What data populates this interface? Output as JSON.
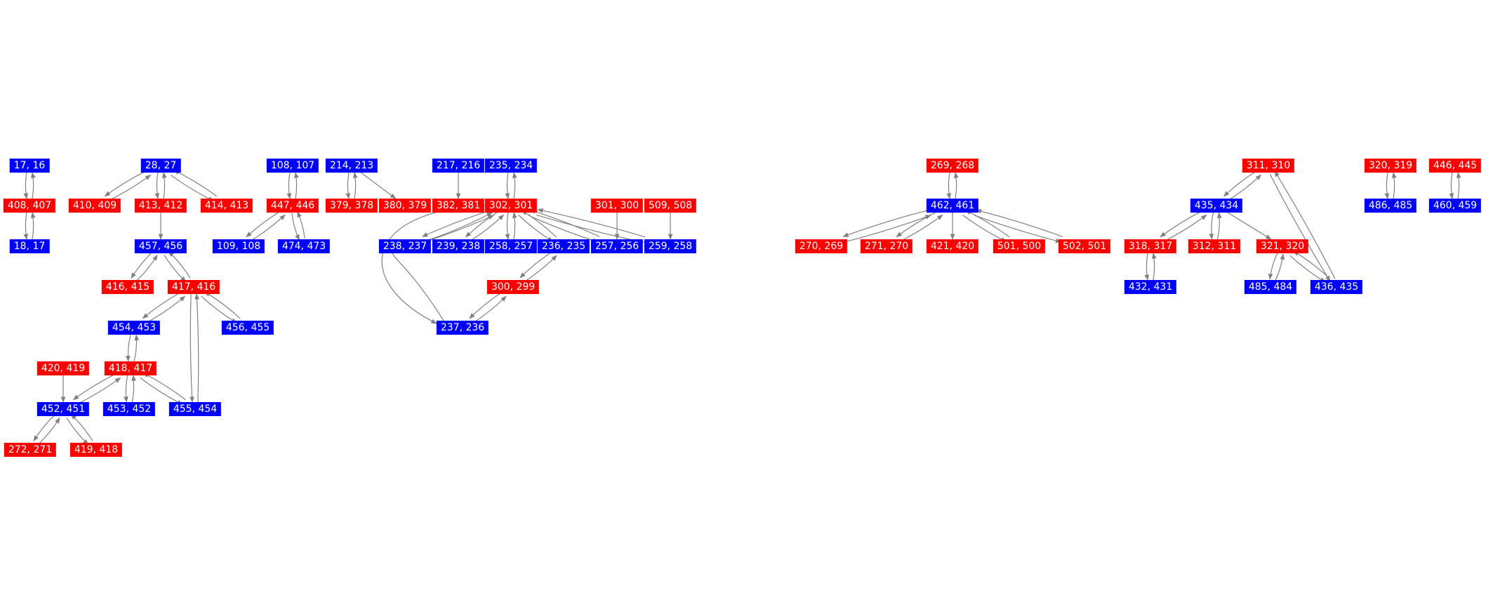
{
  "colors": {
    "red": "#ff0000",
    "blue": "#0000ff",
    "edge": "#808080",
    "text": "#ffffff"
  },
  "nodes": [
    {
      "id": "17, 16",
      "color": "blue"
    },
    {
      "id": "408, 407",
      "color": "red"
    },
    {
      "id": "18, 17",
      "color": "blue"
    },
    {
      "id": "28, 27",
      "color": "blue"
    },
    {
      "id": "410, 409",
      "color": "red"
    },
    {
      "id": "413, 412",
      "color": "red"
    },
    {
      "id": "414, 413",
      "color": "red"
    },
    {
      "id": "457, 456",
      "color": "blue"
    },
    {
      "id": "416, 415",
      "color": "red"
    },
    {
      "id": "417, 416",
      "color": "red"
    },
    {
      "id": "454, 453",
      "color": "blue"
    },
    {
      "id": "456, 455",
      "color": "blue"
    },
    {
      "id": "420, 419",
      "color": "red"
    },
    {
      "id": "418, 417",
      "color": "red"
    },
    {
      "id": "452, 451",
      "color": "blue"
    },
    {
      "id": "453, 452",
      "color": "blue"
    },
    {
      "id": "455, 454",
      "color": "blue"
    },
    {
      "id": "272, 271",
      "color": "red"
    },
    {
      "id": "419, 418",
      "color": "red"
    },
    {
      "id": "108, 107",
      "color": "blue"
    },
    {
      "id": "447, 446",
      "color": "red"
    },
    {
      "id": "109, 108",
      "color": "blue"
    },
    {
      "id": "474, 473",
      "color": "blue"
    },
    {
      "id": "214, 213",
      "color": "blue"
    },
    {
      "id": "379, 378",
      "color": "red"
    },
    {
      "id": "380, 379",
      "color": "red"
    },
    {
      "id": "217, 216",
      "color": "blue"
    },
    {
      "id": "382, 381",
      "color": "red"
    },
    {
      "id": "235, 234",
      "color": "blue"
    },
    {
      "id": "302, 301",
      "color": "red"
    },
    {
      "id": "238, 237",
      "color": "blue"
    },
    {
      "id": "239, 238",
      "color": "blue"
    },
    {
      "id": "258, 257",
      "color": "blue"
    },
    {
      "id": "236, 235",
      "color": "blue"
    },
    {
      "id": "257, 256",
      "color": "blue"
    },
    {
      "id": "259, 258",
      "color": "blue"
    },
    {
      "id": "300, 299",
      "color": "red"
    },
    {
      "id": "237, 236",
      "color": "blue"
    },
    {
      "id": "301, 300",
      "color": "red"
    },
    {
      "id": "509, 508",
      "color": "red"
    },
    {
      "id": "269, 268",
      "color": "red"
    },
    {
      "id": "462, 461",
      "color": "blue"
    },
    {
      "id": "270, 269",
      "color": "red"
    },
    {
      "id": "271, 270",
      "color": "red"
    },
    {
      "id": "421, 420",
      "color": "red"
    },
    {
      "id": "501, 500",
      "color": "red"
    },
    {
      "id": "502, 501",
      "color": "red"
    },
    {
      "id": "311, 310",
      "color": "red"
    },
    {
      "id": "435, 434",
      "color": "blue"
    },
    {
      "id": "318, 317",
      "color": "red"
    },
    {
      "id": "312, 311",
      "color": "red"
    },
    {
      "id": "321, 320",
      "color": "red"
    },
    {
      "id": "432, 431",
      "color": "blue"
    },
    {
      "id": "485, 484",
      "color": "blue"
    },
    {
      "id": "436, 435",
      "color": "blue"
    },
    {
      "id": "320, 319",
      "color": "red"
    },
    {
      "id": "486, 485",
      "color": "blue"
    },
    {
      "id": "446, 445",
      "color": "red"
    },
    {
      "id": "460, 459",
      "color": "blue"
    }
  ],
  "edges": [
    [
      "17, 16",
      "408, 407"
    ],
    [
      "408, 407",
      "17, 16"
    ],
    [
      "408, 407",
      "18, 17"
    ],
    [
      "18, 17",
      "408, 407"
    ],
    [
      "28, 27",
      "410, 409"
    ],
    [
      "410, 409",
      "28, 27"
    ],
    [
      "28, 27",
      "413, 412"
    ],
    [
      "413, 412",
      "28, 27"
    ],
    [
      "28, 27",
      "414, 413"
    ],
    [
      "414, 413",
      "28, 27"
    ],
    [
      "413, 412",
      "457, 456"
    ],
    [
      "457, 456",
      "416, 415"
    ],
    [
      "416, 415",
      "457, 456"
    ],
    [
      "457, 456",
      "417, 416"
    ],
    [
      "417, 416",
      "457, 456"
    ],
    [
      "417, 416",
      "454, 453"
    ],
    [
      "454, 453",
      "417, 416"
    ],
    [
      "417, 416",
      "456, 455"
    ],
    [
      "456, 455",
      "417, 416"
    ],
    [
      "417, 416",
      "455, 454"
    ],
    [
      "455, 454",
      "417, 416"
    ],
    [
      "454, 453",
      "418, 417"
    ],
    [
      "418, 417",
      "454, 453"
    ],
    [
      "418, 417",
      "452, 451"
    ],
    [
      "452, 451",
      "418, 417"
    ],
    [
      "418, 417",
      "453, 452"
    ],
    [
      "453, 452",
      "418, 417"
    ],
    [
      "418, 417",
      "455, 454"
    ],
    [
      "455, 454",
      "418, 417"
    ],
    [
      "420, 419",
      "452, 451"
    ],
    [
      "452, 451",
      "272, 271"
    ],
    [
      "272, 271",
      "452, 451"
    ],
    [
      "452, 451",
      "419, 418"
    ],
    [
      "419, 418",
      "452, 451"
    ],
    [
      "108, 107",
      "447, 446"
    ],
    [
      "447, 446",
      "108, 107"
    ],
    [
      "447, 446",
      "109, 108"
    ],
    [
      "109, 108",
      "447, 446"
    ],
    [
      "447, 446",
      "474, 473"
    ],
    [
      "474, 473",
      "447, 446"
    ],
    [
      "214, 213",
      "379, 378"
    ],
    [
      "379, 378",
      "214, 213"
    ],
    [
      "214, 213",
      "380, 379"
    ],
    [
      "217, 216",
      "382, 381"
    ],
    [
      "235, 234",
      "302, 301"
    ],
    [
      "302, 301",
      "235, 234"
    ],
    [
      "302, 301",
      "238, 237"
    ],
    [
      "238, 237",
      "302, 301"
    ],
    [
      "302, 301",
      "239, 238"
    ],
    [
      "239, 238",
      "302, 301"
    ],
    [
      "302, 301",
      "258, 257"
    ],
    [
      "258, 257",
      "302, 301"
    ],
    [
      "302, 301",
      "236, 235"
    ],
    [
      "236, 235",
      "302, 301"
    ],
    [
      "302, 301",
      "257, 256"
    ],
    [
      "257, 256",
      "302, 301"
    ],
    [
      "302, 301",
      "259, 258"
    ],
    [
      "259, 258",
      "302, 301"
    ],
    [
      "302, 301",
      "237, 236"
    ],
    [
      "237, 236",
      "302, 301"
    ],
    [
      "236, 235",
      "300, 299"
    ],
    [
      "300, 299",
      "236, 235"
    ],
    [
      "300, 299",
      "237, 236"
    ],
    [
      "237, 236",
      "300, 299"
    ],
    [
      "301, 300",
      "257, 256"
    ],
    [
      "509, 508",
      "259, 258"
    ],
    [
      "269, 268",
      "462, 461"
    ],
    [
      "462, 461",
      "269, 268"
    ],
    [
      "462, 461",
      "270, 269"
    ],
    [
      "270, 269",
      "462, 461"
    ],
    [
      "462, 461",
      "271, 270"
    ],
    [
      "271, 270",
      "462, 461"
    ],
    [
      "462, 461",
      "421, 420"
    ],
    [
      "462, 461",
      "501, 500"
    ],
    [
      "501, 500",
      "462, 461"
    ],
    [
      "462, 461",
      "502, 501"
    ],
    [
      "502, 501",
      "462, 461"
    ],
    [
      "311, 310",
      "435, 434"
    ],
    [
      "435, 434",
      "311, 310"
    ],
    [
      "311, 310",
      "436, 435"
    ],
    [
      "436, 435",
      "311, 310"
    ],
    [
      "435, 434",
      "318, 317"
    ],
    [
      "318, 317",
      "435, 434"
    ],
    [
      "435, 434",
      "312, 311"
    ],
    [
      "312, 311",
      "435, 434"
    ],
    [
      "435, 434",
      "321, 320"
    ],
    [
      "318, 317",
      "432, 431"
    ],
    [
      "432, 431",
      "318, 317"
    ],
    [
      "321, 320",
      "485, 484"
    ],
    [
      "485, 484",
      "321, 320"
    ],
    [
      "321, 320",
      "436, 435"
    ],
    [
      "436, 435",
      "321, 320"
    ],
    [
      "320, 319",
      "486, 485"
    ],
    [
      "486, 485",
      "320, 319"
    ],
    [
      "446, 445",
      "460, 459"
    ],
    [
      "460, 459",
      "446, 445"
    ]
  ]
}
